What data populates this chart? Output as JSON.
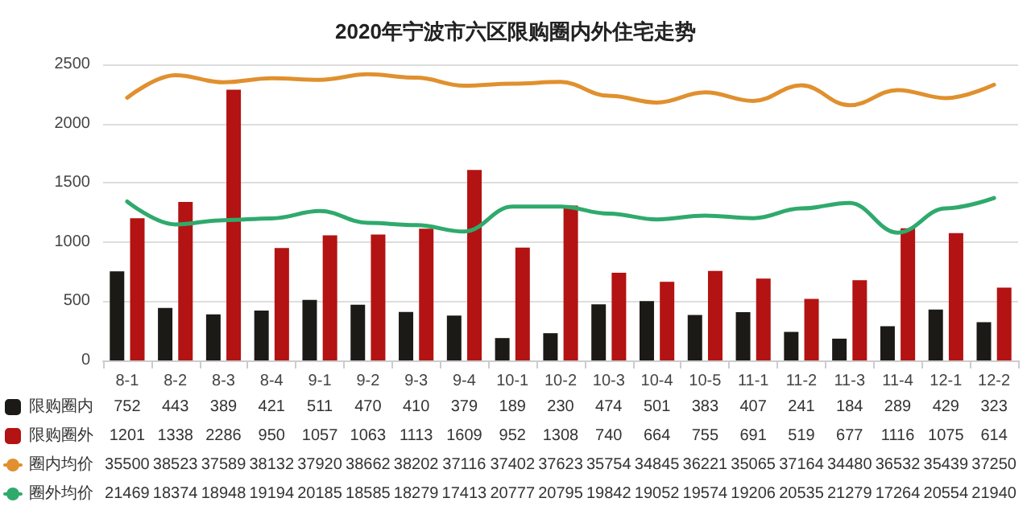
{
  "chart_data": {
    "type": "bar",
    "title": "2020年宁波市六区限购圈内外住宅走势",
    "categories": [
      "8-1",
      "8-2",
      "8-3",
      "8-4",
      "9-1",
      "9-2",
      "9-3",
      "9-4",
      "10-1",
      "10-2",
      "10-3",
      "10-4",
      "10-5",
      "11-1",
      "11-2",
      "11-3",
      "11-4",
      "12-1",
      "12-2"
    ],
    "series": [
      {
        "name": "限购圈内",
        "color": "#1c1a17",
        "values": [
          752,
          443,
          389,
          421,
          511,
          470,
          410,
          379,
          189,
          230,
          474,
          501,
          383,
          407,
          241,
          184,
          289,
          429,
          323
        ]
      },
      {
        "name": "限购圈外",
        "color": "#b31312",
        "values": [
          1201,
          1338,
          2286,
          950,
          1057,
          1063,
          1113,
          1609,
          952,
          1308,
          740,
          664,
          755,
          691,
          519,
          677,
          1116,
          1075,
          614
        ]
      },
      {
        "name": "圈内均价",
        "type": "line",
        "axis": "y2",
        "color": "#e0902e",
        "values": [
          35500,
          38523,
          37589,
          38132,
          37920,
          38662,
          38202,
          37116,
          37402,
          37623,
          35754,
          34845,
          36221,
          35065,
          37164,
          34480,
          36532,
          35439,
          37250
        ]
      },
      {
        "name": "圈外均价",
        "type": "line",
        "axis": "y2",
        "color": "#2faa6c",
        "values": [
          21469,
          18374,
          18948,
          19194,
          20185,
          18585,
          18279,
          17413,
          20777,
          20795,
          19842,
          19052,
          19574,
          19206,
          20535,
          21279,
          17264,
          20554,
          21940
        ]
      }
    ],
    "ylim": [
      0,
      2500
    ],
    "yticks": [
      0,
      500,
      1000,
      1500,
      2000,
      2500
    ],
    "grid": "y",
    "legend": "bottom left",
    "marker": "none",
    "line_style": "solid",
    "data_labels": true
  }
}
